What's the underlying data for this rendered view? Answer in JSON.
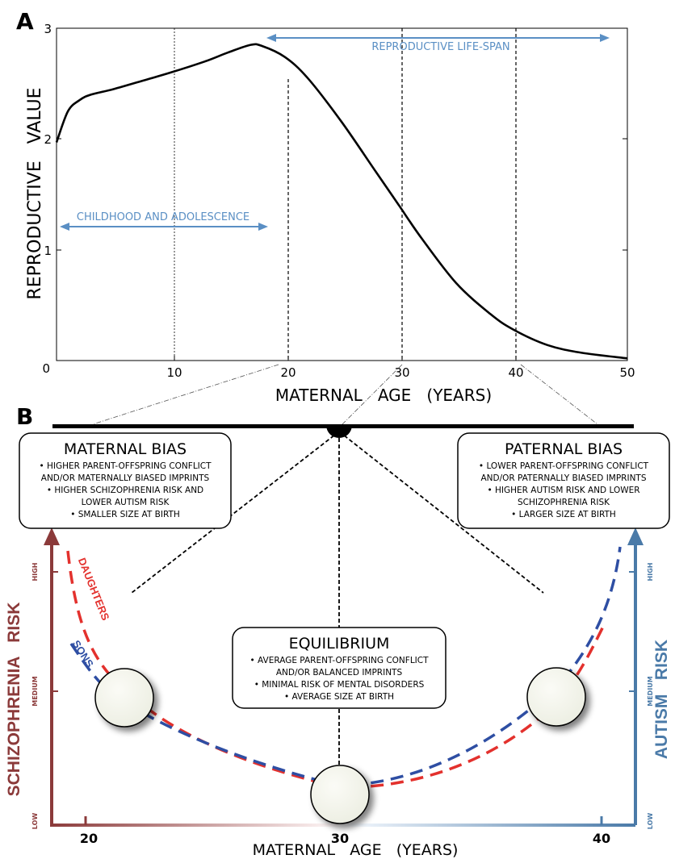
{
  "panel_a": {
    "letter": "A",
    "ylabel": "REPRODUCTIVE   VALUE",
    "xlabel": "MATERNAL   AGE   (YEARS)",
    "yticks": [
      "0",
      "1",
      "2",
      "3"
    ],
    "xticks": [
      "10",
      "20",
      "30",
      "40",
      "50"
    ],
    "annot_reproductive": "REPRODUCTIVE LIFE-SPAN",
    "annot_childhood": "CHILDHOOD AND ADOLESCENCE"
  },
  "panel_b": {
    "letter": "B",
    "maternal": {
      "title": "MATERNAL BIAS",
      "lines": [
        "• HIGHER PARENT-OFFSPRING CONFLICT",
        "AND/OR MATERNALLY BIASED IMPRINTS",
        "• HIGHER SCHIZOPHRENIA RISK AND",
        "LOWER AUTISM RISK",
        "• SMALLER SIZE AT BIRTH"
      ]
    },
    "paternal": {
      "title": "PATERNAL BIAS",
      "lines": [
        "• LOWER PARENT-OFFSPRING CONFLICT",
        "AND/OR PATERNALLY BIASED IMPRINTS",
        "• HIGHER AUTISM RISK AND LOWER",
        "SCHIZOPHRENIA RISK",
        "• LARGER SIZE AT BIRTH"
      ]
    },
    "equilibrium": {
      "title": "EQUILIBRIUM",
      "lines": [
        "• AVERAGE PARENT-OFFSPRING CONFLICT",
        "AND/OR BALANCED IMPRINTS",
        "• MINIMAL RISK OF MENTAL DISORDERS",
        "• AVERAGE SIZE AT BIRTH"
      ]
    },
    "left_axis_label": "SCHIZOPHRENIA   RISK",
    "right_axis_label": "AUTISM   RISK",
    "level_high": "HIGH",
    "level_medium": "MEDIUM",
    "level_low": "LOW",
    "daughters": "DAUGHTERS",
    "sons": "SONS",
    "xticks": [
      "20",
      "30",
      "40"
    ],
    "xlabel": "MATERNAL   AGE   (YEARS)",
    "colors": {
      "schizophrenia": "#8b3a3a",
      "autism": "#4a7aa8",
      "daughters": "#e3312d",
      "sons": "#2e4ea3",
      "annotation": "#5a8fc4"
    }
  },
  "chart_data": {
    "type": "line",
    "xlabel": "MATERNAL   AGE   (YEARS)",
    "ylabel": "REPRODUCTIVE   VALUE",
    "xlim": [
      0,
      50
    ],
    "ylim": [
      0,
      3
    ],
    "x": [
      0,
      1,
      2,
      3,
      5,
      8,
      10,
      13,
      15,
      17,
      18,
      20,
      22,
      25,
      28,
      30,
      32,
      35,
      38,
      40,
      43,
      46,
      50
    ],
    "series": [
      {
        "values": [
          1.97,
          2.25,
          2.35,
          2.4,
          2.45,
          2.54,
          2.6,
          2.7,
          2.78,
          2.85,
          2.84,
          2.74,
          2.55,
          2.15,
          1.7,
          1.4,
          1.1,
          0.7,
          0.42,
          0.28,
          0.14,
          0.07,
          0.02
        ]
      }
    ],
    "grid": "vertical dashed at 10, 20, 30, 40"
  }
}
